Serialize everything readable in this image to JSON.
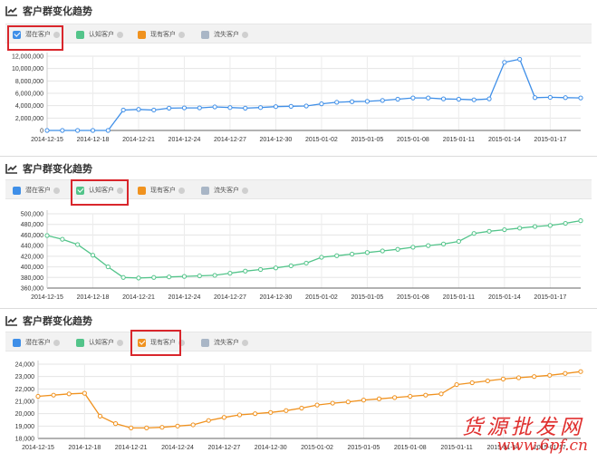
{
  "legend": [
    {
      "label": "潜在客户",
      "color": "#3f8fe8"
    },
    {
      "label": "认知客户",
      "color": "#53c48a"
    },
    {
      "label": "现有客户",
      "color": "#f0921f"
    },
    {
      "label": "流失客户",
      "color": "#a9b6c6"
    }
  ],
  "panels": [
    {
      "title": "客户群变化趋势",
      "checked_index": 0
    },
    {
      "title": "客户群变化趋势",
      "checked_index": 1
    },
    {
      "title": "客户群变化趋势",
      "checked_index": 2
    }
  ],
  "watermark": {
    "top": "货源批发网",
    "bottom": "www.6pf.cn"
  },
  "chart_data": [
    {
      "type": "line",
      "series": [
        {
          "name": "潜在客户",
          "color": "#3f8fe8",
          "values": [
            0,
            0,
            0,
            0,
            0,
            3300000,
            3400000,
            3300000,
            3600000,
            3650000,
            3650000,
            3800000,
            3700000,
            3600000,
            3700000,
            3850000,
            3900000,
            3950000,
            4300000,
            4550000,
            4650000,
            4700000,
            4850000,
            5050000,
            5250000,
            5250000,
            5100000,
            5050000,
            4950000,
            5100000,
            11000000,
            11500000,
            5300000,
            5350000,
            5300000,
            5250000
          ]
        }
      ],
      "x": [
        "2014-12-15",
        "2014-12-16",
        "2014-12-17",
        "2014-12-18",
        "2014-12-19",
        "2014-12-20",
        "2014-12-21",
        "2014-12-22",
        "2014-12-23",
        "2014-12-24",
        "2014-12-25",
        "2014-12-26",
        "2014-12-27",
        "2014-12-28",
        "2014-12-29",
        "2014-12-30",
        "2014-12-31",
        "2015-01-01",
        "2015-01-02",
        "2015-01-03",
        "2015-01-04",
        "2015-01-05",
        "2015-01-06",
        "2015-01-07",
        "2015-01-08",
        "2015-01-09",
        "2015-01-10",
        "2015-01-11",
        "2015-01-12",
        "2015-01-13",
        "2015-01-14",
        "2015-01-15",
        "2015-01-16",
        "2015-01-17",
        "2015-01-18",
        "2015-01-19"
      ],
      "xticks": [
        "2014-12-15",
        "2014-12-18",
        "2014-12-21",
        "2014-12-24",
        "2014-12-27",
        "2014-12-30",
        "2015-01-02",
        "2015-01-05",
        "2015-01-08",
        "2015-01-11",
        "2015-01-14",
        "2015-01-17"
      ],
      "yticks": [
        "0",
        "2,000,000",
        "4,000,000",
        "6,000,000",
        "8,000,000",
        "10,000,000",
        "12,000,000"
      ],
      "ylim": [
        0,
        12000000
      ],
      "grid": true
    },
    {
      "type": "line",
      "series": [
        {
          "name": "认知客户",
          "color": "#53c48a",
          "values": [
            459000,
            452000,
            442000,
            422000,
            400000,
            380000,
            379000,
            380000,
            381000,
            382000,
            383000,
            384000,
            388000,
            392000,
            395000,
            398000,
            402000,
            407000,
            418000,
            421000,
            424000,
            427000,
            430000,
            433000,
            437000,
            440000,
            443000,
            448000,
            463000,
            467000,
            470000,
            473000,
            476000,
            478000,
            482000,
            487000
          ]
        }
      ],
      "x": [
        "2014-12-15",
        "2014-12-16",
        "2014-12-17",
        "2014-12-18",
        "2014-12-19",
        "2014-12-20",
        "2014-12-21",
        "2014-12-22",
        "2014-12-23",
        "2014-12-24",
        "2014-12-25",
        "2014-12-26",
        "2014-12-27",
        "2014-12-28",
        "2014-12-29",
        "2014-12-30",
        "2014-12-31",
        "2015-01-01",
        "2015-01-02",
        "2015-01-03",
        "2015-01-04",
        "2015-01-05",
        "2015-01-06",
        "2015-01-07",
        "2015-01-08",
        "2015-01-09",
        "2015-01-10",
        "2015-01-11",
        "2015-01-12",
        "2015-01-13",
        "2015-01-14",
        "2015-01-15",
        "2015-01-16",
        "2015-01-17",
        "2015-01-18",
        "2015-01-19"
      ],
      "xticks": [
        "2014-12-15",
        "2014-12-18",
        "2014-12-21",
        "2014-12-24",
        "2014-12-27",
        "2014-12-30",
        "2015-01-02",
        "2015-01-05",
        "2015-01-08",
        "2015-01-11",
        "2015-01-14",
        "2015-01-17"
      ],
      "yticks": [
        "360,000",
        "380,000",
        "400,000",
        "420,000",
        "440,000",
        "460,000",
        "480,000",
        "500,000"
      ],
      "ylim": [
        360000,
        500000
      ],
      "grid": true
    },
    {
      "type": "line",
      "series": [
        {
          "name": "现有客户",
          "color": "#f0921f",
          "values": [
            21400,
            21500,
            21600,
            21650,
            19800,
            19200,
            18850,
            18850,
            18900,
            19000,
            19100,
            19450,
            19700,
            19900,
            20000,
            20100,
            20250,
            20450,
            20700,
            20850,
            20950,
            21100,
            21200,
            21300,
            21400,
            21500,
            21600,
            22350,
            22500,
            22650,
            22800,
            22900,
            23000,
            23100,
            23250,
            23400
          ]
        }
      ],
      "x": [
        "2014-12-15",
        "2014-12-16",
        "2014-12-17",
        "2014-12-18",
        "2014-12-19",
        "2014-12-20",
        "2014-12-21",
        "2014-12-22",
        "2014-12-23",
        "2014-12-24",
        "2014-12-25",
        "2014-12-26",
        "2014-12-27",
        "2014-12-28",
        "2014-12-29",
        "2014-12-30",
        "2014-12-31",
        "2015-01-01",
        "2015-01-02",
        "2015-01-03",
        "2015-01-04",
        "2015-01-05",
        "2015-01-06",
        "2015-01-07",
        "2015-01-08",
        "2015-01-09",
        "2015-01-10",
        "2015-01-11",
        "2015-01-12",
        "2015-01-13",
        "2015-01-14",
        "2015-01-15",
        "2015-01-16",
        "2015-01-17",
        "2015-01-18",
        "2015-01-19"
      ],
      "xticks": [
        "2014-12-15",
        "2014-12-18",
        "2014-12-21",
        "2014-12-24",
        "2014-12-27",
        "2014-12-30",
        "2015-01-02",
        "2015-01-05",
        "2015-01-08",
        "2015-01-11",
        "2015-01-14",
        "2015-01-17"
      ],
      "yticks": [
        "18,000",
        "19,000",
        "20,000",
        "21,000",
        "22,000",
        "23,000",
        "24,000"
      ],
      "ylim": [
        18000,
        24000
      ],
      "grid": true
    }
  ]
}
